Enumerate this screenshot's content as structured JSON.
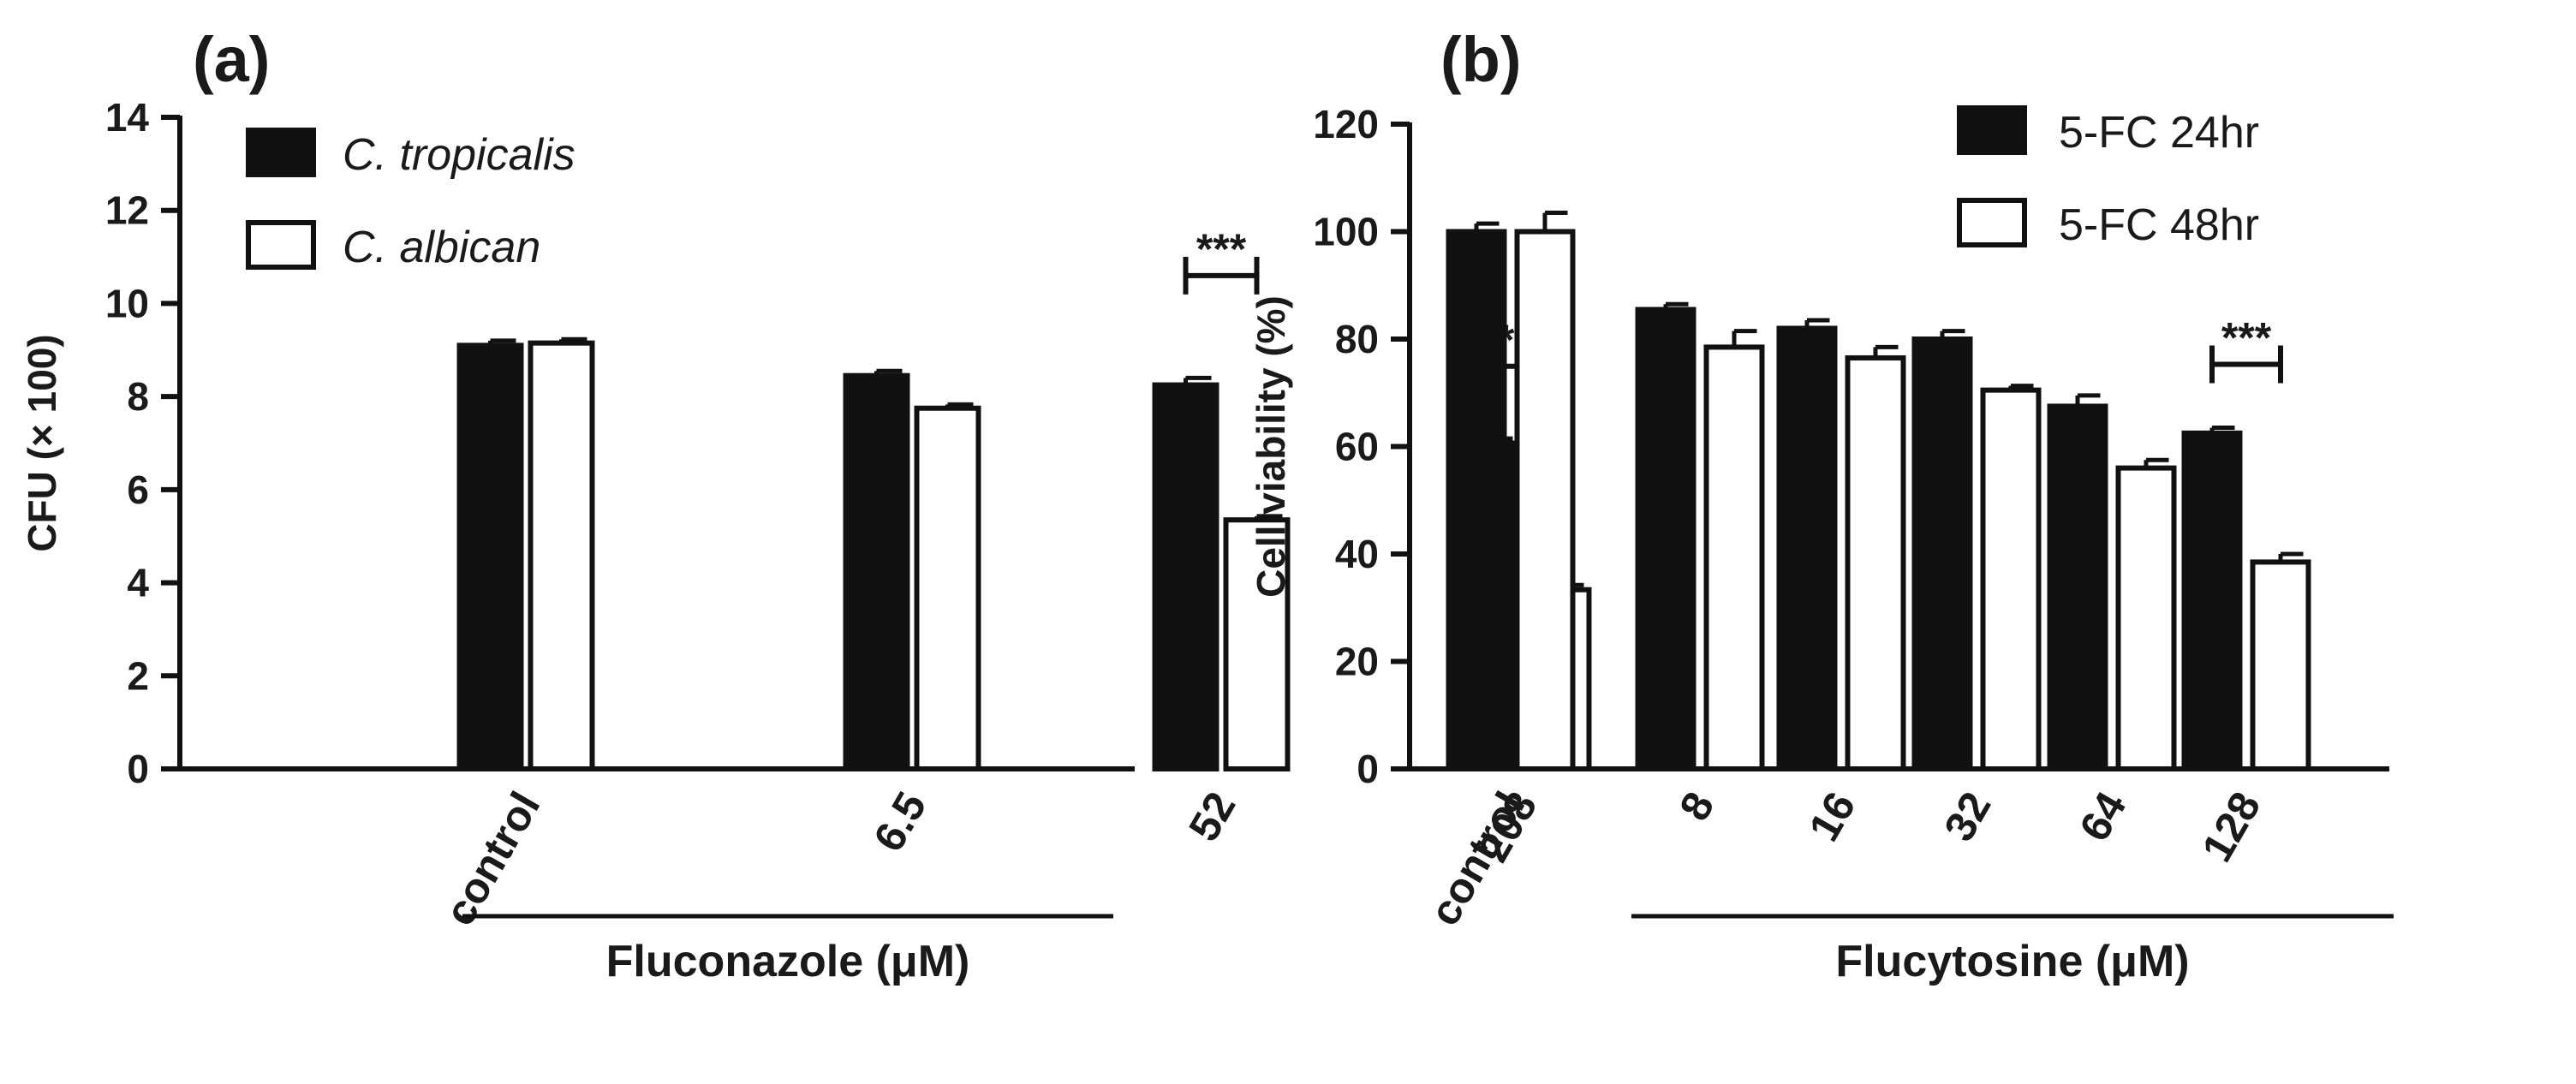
{
  "chart_data": [
    {
      "panel_label": "(a)",
      "type": "bar",
      "ylabel": "CFU (× 100)",
      "ylim": [
        0,
        14
      ],
      "yticks": [
        "0",
        "2",
        "4",
        "6",
        "8",
        "10",
        "12",
        "14"
      ],
      "categories": [
        "control",
        "6.5",
        "52",
        "208"
      ],
      "group_label": "Fluconazole (μM)",
      "series": [
        {
          "name": "C. tropicalis",
          "fill": "#111111",
          "values": [
            9.1,
            8.45,
            8.25,
            7.0
          ],
          "errors": [
            0.1,
            0.1,
            0.15,
            0.1
          ]
        },
        {
          "name": "C. albican",
          "fill": "#ffffff",
          "values": [
            9.15,
            7.75,
            5.35,
            3.85
          ],
          "errors": [
            0.08,
            0.08,
            0.08,
            0.1
          ]
        }
      ],
      "significance": [
        {
          "category": "52",
          "text": "***",
          "level": 10.6
        },
        {
          "category": "208",
          "text": "***",
          "level": 8.65
        }
      ],
      "legend_position": "top-left"
    },
    {
      "panel_label": "(b)",
      "type": "bar",
      "ylabel": "Cell viability (%)",
      "ylim": [
        0,
        120
      ],
      "yticks": [
        "0",
        "20",
        "40",
        "60",
        "80",
        "100",
        "120"
      ],
      "categories": [
        "control",
        "8",
        "16",
        "32",
        "64",
        "128"
      ],
      "group_label": "Flucytosine (μM)",
      "series": [
        {
          "name": "5-FC 24hr",
          "fill": "#111111",
          "values": [
            100.0,
            85.5,
            82.0,
            80.0,
            67.5,
            62.5
          ],
          "errors": [
            1.5,
            1.0,
            1.5,
            1.5,
            2.0,
            1.0
          ]
        },
        {
          "name": "5-FC 48hr",
          "fill": "#ffffff",
          "values": [
            100.0,
            78.5,
            76.5,
            70.5,
            56.0,
            38.5
          ],
          "errors": [
            3.5,
            3.0,
            2.0,
            0.8,
            1.5,
            1.5
          ]
        }
      ],
      "significance": [
        {
          "category": "128",
          "text": "***",
          "level": 75.3
        }
      ],
      "legend_position": "top-right"
    }
  ]
}
